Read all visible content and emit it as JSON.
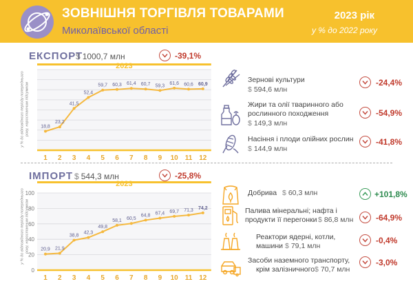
{
  "header": {
    "title": "ЗОВНІШНЯ ТОРГІВЛЯ ТОВАРАМИ",
    "subtitle": "Миколаївської області",
    "year": "2023 рік",
    "year_sub": "у % до 2022 року"
  },
  "export": {
    "label": "ЕКСПОРТ",
    "currency": "$",
    "value": "1000,7 млн",
    "change": "-39,1%",
    "change_dir": "down",
    "items": [
      {
        "icon": "wheat-icon",
        "name_lines": [
          "Зернові культури"
        ],
        "currency": "$",
        "value": "594,6 млн",
        "change": "-24,4%",
        "change_dir": "down"
      },
      {
        "icon": "oil-bottle-icon",
        "name_lines": [
          "Жири та олії тваринного або",
          "рослинного походження"
        ],
        "currency": "$",
        "value": "149,3 млн",
        "change": "-54,9%",
        "change_dir": "down"
      },
      {
        "icon": "corn-icon",
        "name_lines": [
          "Насіння і плоди олійних рослин"
        ],
        "currency": "$",
        "value": "144,9 млн",
        "change": "-41,8%",
        "change_dir": "down"
      }
    ]
  },
  "import": {
    "label": "ІМПОРТ",
    "currency": "$",
    "value": "544,3 млн",
    "change": "-25,8%",
    "change_dir": "down",
    "items": [
      {
        "icon": "fertilizer-bag-icon",
        "name_lines": [
          "Добрива"
        ],
        "currency": "$",
        "value": "60,3 млн",
        "change": "+101,8%",
        "change_dir": "up"
      },
      {
        "icon": "fuel-pump-icon",
        "name_lines": [
          "Палива мінеральні; нафта і",
          "продукти її перегонки"
        ],
        "currency": "$",
        "value": "86,8 млн",
        "change": "-64,9%",
        "change_dir": "down"
      },
      {
        "icon": "reactor-icon",
        "name_lines": [
          "Реактори ядерні, котли,",
          "машини"
        ],
        "currency": "$",
        "value": "79,1 млн",
        "change": "-0,4%",
        "change_dir": "down"
      },
      {
        "icon": "vehicles-icon",
        "name_lines": [
          "Засоби наземного транспорту,",
          "крім залізничного"
        ],
        "currency": "$",
        "value": "70,7 млн",
        "change": "-3,0%",
        "change_dir": "down"
      }
    ]
  },
  "chart_data": [
    {
      "type": "line",
      "title": "2023",
      "ylabel": "у % до відповідного періоду попереднього року, наростаючим підсумком",
      "x": [
        1,
        2,
        3,
        4,
        5,
        6,
        7,
        8,
        9,
        10,
        11,
        12
      ],
      "values": [
        18.8,
        23.2,
        41.5,
        52.4,
        59.7,
        60.3,
        61.4,
        60.7,
        59.3,
        61.6,
        60.6,
        60.9
      ],
      "value_labels": [
        "18,8",
        "23,2",
        "41,5",
        "52,4",
        "59,7",
        "60,3",
        "61,4",
        "60,7",
        "59,3",
        "61,6",
        "60,6",
        "60,9"
      ],
      "ylim": [
        0,
        80
      ],
      "yticks": [
        0,
        10,
        20,
        30,
        40,
        50,
        60,
        70,
        80
      ],
      "ytick_labels": [
        "",
        "",
        "",
        "",
        "",
        "",
        "",
        "",
        ""
      ],
      "grid": true,
      "color": "#f5b83d"
    },
    {
      "type": "line",
      "title": "2023",
      "ylabel": "у % до відповідного періоду попереднього року, наростаючим підсумком",
      "x": [
        1,
        2,
        3,
        4,
        5,
        6,
        7,
        8,
        9,
        10,
        11,
        12
      ],
      "values": [
        20.9,
        21.9,
        38.8,
        42.3,
        49.8,
        58.1,
        60.5,
        64.8,
        67.4,
        69.7,
        71.3,
        74.2
      ],
      "value_labels": [
        "20,9",
        "21,9",
        "38,8",
        "42,3",
        "49,8",
        "58,1",
        "60,5",
        "64,8",
        "67,4",
        "69,7",
        "71,3",
        "74,2"
      ],
      "ylim": [
        0,
        100
      ],
      "yticks": [
        0,
        20,
        40,
        60,
        80,
        100
      ],
      "ytick_labels": [
        "0",
        "20",
        "40",
        "60",
        "80",
        "100"
      ],
      "grid": true,
      "color": "#f5b83d"
    }
  ],
  "colors": {
    "header_bg": "#f7c12d",
    "accent_purple": "#6f5fa8",
    "line": "#f5b83d",
    "negative": "#c0392b",
    "positive": "#2e8b4f"
  }
}
